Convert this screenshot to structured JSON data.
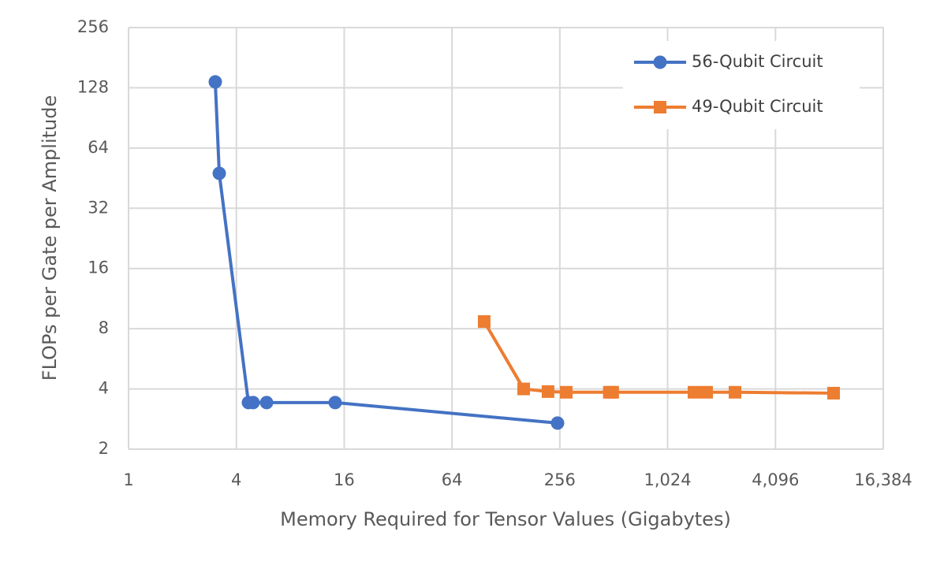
{
  "chart_data": {
    "type": "line",
    "xlabel": "Memory Required for Tensor Values (Gigabytes)",
    "ylabel": "FLOPs per Gate per Amplitude",
    "xscale": "log2",
    "yscale": "log2",
    "xlim": [
      1,
      16384
    ],
    "ylim": [
      2,
      256
    ],
    "xticks": [
      1,
      4,
      16,
      64,
      256,
      {
        "value": 1024,
        "label": "1,024"
      },
      {
        "value": 4096,
        "label": "4,096"
      },
      {
        "value": 16384,
        "label": "16,384"
      }
    ],
    "yticks": [
      2,
      4,
      8,
      16,
      32,
      64,
      128,
      256
    ],
    "grid": true,
    "legend": "upper right",
    "series": [
      {
        "name": "56-Qubit Circuit",
        "color": "#4472c4",
        "marker": "circle",
        "x": [
          3.05,
          3.21,
          4.67,
          4.96,
          5.9,
          14.25,
          248.7
        ],
        "values": [
          137,
          47.8,
          3.42,
          3.42,
          3.42,
          3.42,
          2.7
        ]
      },
      {
        "name": "49-Qubit Circuit",
        "color": "#ed7d31",
        "marker": "square",
        "x": [
          96.8,
          160.8,
          220,
          278,
          484,
          505,
          1437,
          1690,
          2435,
          8650
        ],
        "values": [
          8.69,
          4.0,
          3.88,
          3.85,
          3.85,
          3.85,
          3.85,
          3.85,
          3.85,
          3.81
        ]
      }
    ]
  }
}
